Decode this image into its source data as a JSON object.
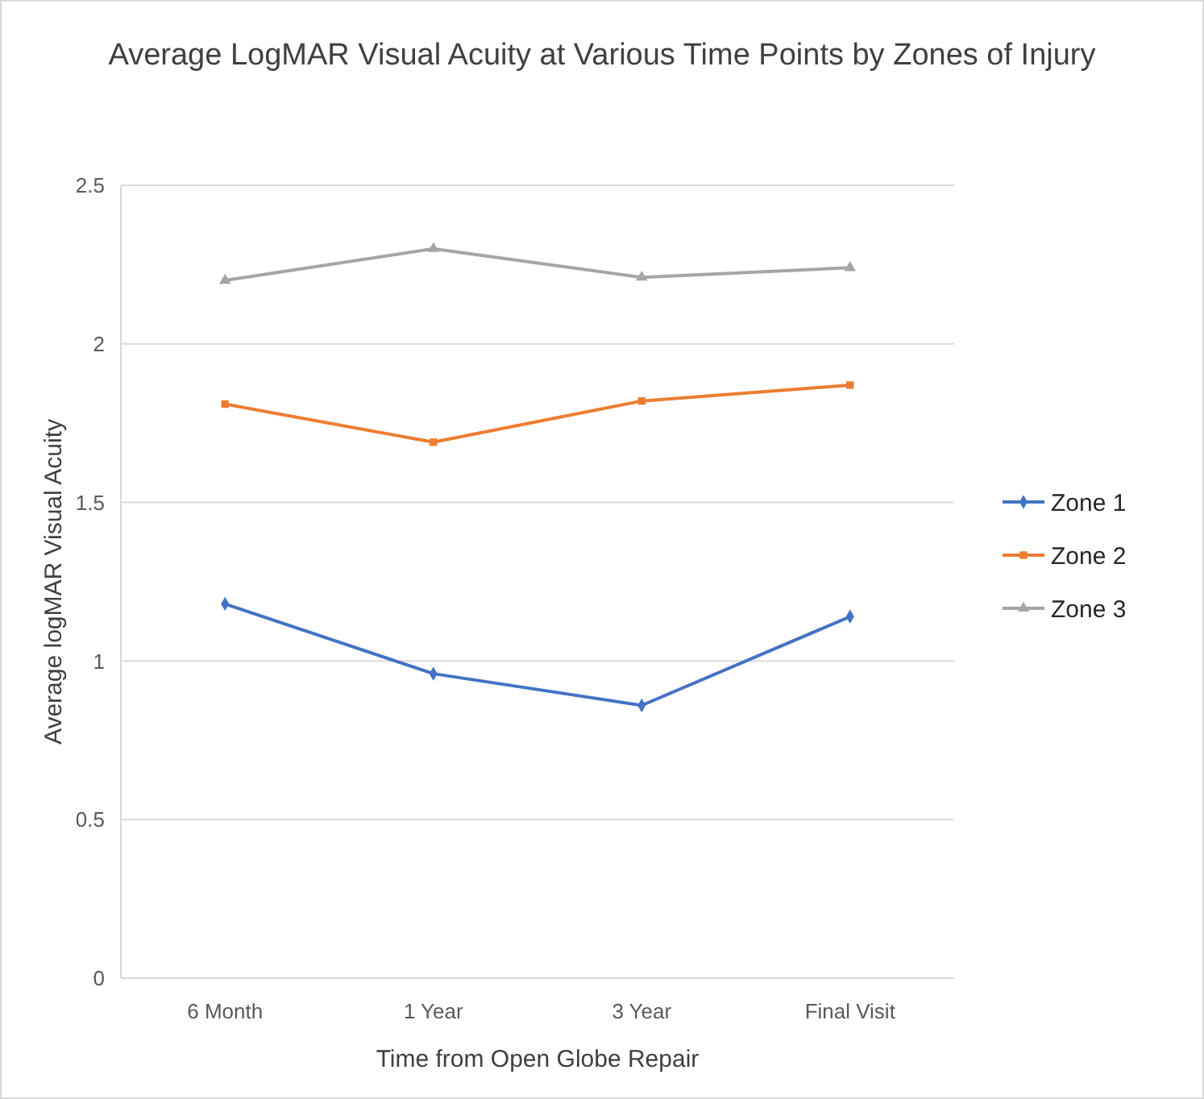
{
  "chart_data": {
    "type": "line",
    "title": "Average LogMAR Visual Acuity at Various Time Points by Zones of Injury",
    "xlabel": "Time from Open Globe Repair",
    "ylabel": "Average logMAR Visual Acuity",
    "categories": [
      "6 Month",
      "1 Year",
      "3 Year",
      "Final Visit"
    ],
    "ylim": [
      0,
      2.5
    ],
    "yticks": [
      0,
      0.5,
      1,
      1.5,
      2,
      2.5
    ],
    "grid": "y",
    "legend": "right",
    "series": [
      {
        "name": "Zone 1",
        "color": "#4472c4",
        "marker": "diamond",
        "values": [
          1.18,
          0.96,
          0.86,
          1.14
        ]
      },
      {
        "name": "Zone 2",
        "color": "#ed7d31",
        "marker": "square",
        "values": [
          1.81,
          1.69,
          1.82,
          1.87
        ]
      },
      {
        "name": "Zone 3",
        "color": "#a5a5a5",
        "marker": "triangle",
        "values": [
          2.2,
          2.3,
          2.21,
          2.24
        ]
      }
    ]
  }
}
